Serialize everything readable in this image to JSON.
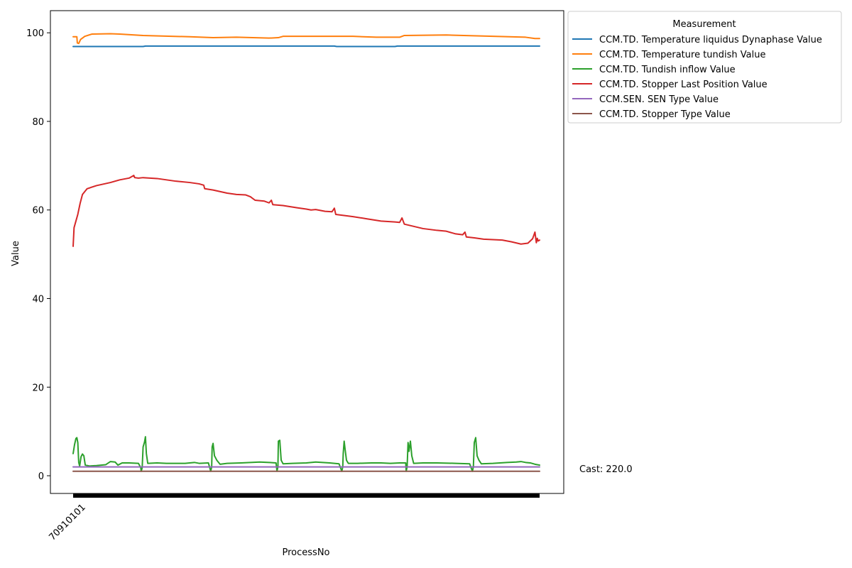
{
  "chart_data": {
    "type": "line",
    "xlabel": "ProcessNo",
    "ylabel": "Value",
    "x_tick_labels": [
      "70910101"
    ],
    "y_ticks": [
      0,
      20,
      40,
      60,
      80,
      100
    ],
    "ylim": [
      -4,
      105
    ],
    "xlim": [
      0,
      100
    ],
    "grid": false,
    "legend": {
      "title": "Measurement",
      "placement": "outside-top-right"
    },
    "annotation": "Cast: 220.0",
    "series": [
      {
        "name": "CCM.TD. Temperature liquidus Dynaphase Value",
        "color": "#1f77b4",
        "points": [
          [
            0,
            96.9
          ],
          [
            15,
            96.9
          ],
          [
            15.5,
            97.0
          ],
          [
            56,
            97.0
          ],
          [
            56.5,
            96.9
          ],
          [
            69,
            96.9
          ],
          [
            69.5,
            97.0
          ],
          [
            100,
            97.0
          ]
        ]
      },
      {
        "name": "CCM.TD. Temperature tundish Value",
        "color": "#ff7f0e",
        "points": [
          [
            0,
            99.1
          ],
          [
            0.8,
            99.1
          ],
          [
            0.9,
            97.7
          ],
          [
            1.2,
            97.6
          ],
          [
            1.6,
            98.5
          ],
          [
            2.5,
            99.2
          ],
          [
            4,
            99.7
          ],
          [
            8,
            99.8
          ],
          [
            10,
            99.7
          ],
          [
            15,
            99.4
          ],
          [
            25,
            99.1
          ],
          [
            30,
            98.9
          ],
          [
            35,
            99.0
          ],
          [
            42,
            98.8
          ],
          [
            44,
            98.9
          ],
          [
            45,
            99.2
          ],
          [
            55,
            99.2
          ],
          [
            60,
            99.2
          ],
          [
            65,
            99.0
          ],
          [
            70,
            99.0
          ],
          [
            71,
            99.4
          ],
          [
            80,
            99.5
          ],
          [
            90,
            99.2
          ],
          [
            97,
            99.0
          ],
          [
            99,
            98.7
          ],
          [
            100,
            98.7
          ]
        ]
      },
      {
        "name": "CCM.TD. Tundish inflow Value",
        "color": "#2ca02c",
        "points": [
          [
            0,
            5.0
          ],
          [
            0.3,
            7.0
          ],
          [
            0.6,
            8.4
          ],
          [
            0.8,
            8.6
          ],
          [
            1.0,
            7.5
          ],
          [
            1.2,
            3.0
          ],
          [
            1.4,
            2.2
          ],
          [
            1.7,
            4.3
          ],
          [
            2,
            4.9
          ],
          [
            2.3,
            4.5
          ],
          [
            2.6,
            2.4
          ],
          [
            3.5,
            2.2
          ],
          [
            5,
            2.3
          ],
          [
            7,
            2.5
          ],
          [
            8,
            3.2
          ],
          [
            9,
            3.1
          ],
          [
            9.6,
            2.4
          ],
          [
            10.5,
            2.9
          ],
          [
            12,
            2.9
          ],
          [
            14,
            2.8
          ],
          [
            14.5,
            1.8
          ],
          [
            14.6,
            1.0
          ],
          [
            14.8,
            1.8
          ],
          [
            15,
            6.5
          ],
          [
            15.3,
            7.6
          ],
          [
            15.5,
            8.8
          ],
          [
            15.7,
            5.0
          ],
          [
            16,
            2.8
          ],
          [
            18,
            2.9
          ],
          [
            20,
            2.8
          ],
          [
            24,
            2.8
          ],
          [
            26,
            3.0
          ],
          [
            27,
            2.8
          ],
          [
            29,
            2.9
          ],
          [
            29.5,
            1.0
          ],
          [
            29.7,
            2.0
          ],
          [
            29.8,
            6.5
          ],
          [
            30,
            7.3
          ],
          [
            30.3,
            4.5
          ],
          [
            30.8,
            3.5
          ],
          [
            31.5,
            2.6
          ],
          [
            33,
            2.8
          ],
          [
            36,
            2.9
          ],
          [
            40,
            3.1
          ],
          [
            42,
            3.0
          ],
          [
            43.5,
            2.9
          ],
          [
            43.7,
            1.0
          ],
          [
            43.9,
            2.0
          ],
          [
            44,
            7.8
          ],
          [
            44.3,
            8.0
          ],
          [
            44.6,
            3.5
          ],
          [
            45,
            2.7
          ],
          [
            47,
            2.8
          ],
          [
            50,
            2.9
          ],
          [
            52,
            3.1
          ],
          [
            55,
            2.9
          ],
          [
            57,
            2.7
          ],
          [
            57.6,
            1.0
          ],
          [
            57.8,
            2.0
          ],
          [
            57.9,
            5.0
          ],
          [
            58.1,
            7.8
          ],
          [
            58.3,
            6.0
          ],
          [
            58.6,
            3.5
          ],
          [
            59,
            2.8
          ],
          [
            61,
            2.8
          ],
          [
            64,
            2.9
          ],
          [
            66,
            2.9
          ],
          [
            68,
            2.8
          ],
          [
            70,
            2.9
          ],
          [
            71.3,
            2.9
          ],
          [
            71.4,
            1.0
          ],
          [
            71.6,
            2.0
          ],
          [
            71.8,
            7.5
          ],
          [
            72,
            5.5
          ],
          [
            72.3,
            7.8
          ],
          [
            72.6,
            4.5
          ],
          [
            73,
            2.8
          ],
          [
            75,
            2.9
          ],
          [
            78,
            2.9
          ],
          [
            82,
            2.8
          ],
          [
            85,
            2.7
          ],
          [
            85.6,
            1.0
          ],
          [
            85.8,
            2.0
          ],
          [
            86,
            7.5
          ],
          [
            86.3,
            8.6
          ],
          [
            86.6,
            4.5
          ],
          [
            87,
            3.5
          ],
          [
            87.5,
            2.7
          ],
          [
            90,
            2.8
          ],
          [
            93,
            3.0
          ],
          [
            95,
            3.1
          ],
          [
            96,
            3.2
          ],
          [
            97,
            3.0
          ],
          [
            98,
            2.9
          ],
          [
            99,
            2.6
          ],
          [
            100,
            2.4
          ]
        ]
      },
      {
        "name": "CCM.TD. Stopper Last Position Value",
        "color": "#d62728",
        "points": [
          [
            0,
            51.8
          ],
          [
            0.2,
            56.0
          ],
          [
            0.6,
            57.5
          ],
          [
            1,
            59.0
          ],
          [
            1.5,
            61.5
          ],
          [
            2,
            63.5
          ],
          [
            3,
            64.8
          ],
          [
            5,
            65.5
          ],
          [
            8,
            66.2
          ],
          [
            10,
            66.8
          ],
          [
            12,
            67.2
          ],
          [
            13,
            67.8
          ],
          [
            13.2,
            67.3
          ],
          [
            14,
            67.2
          ],
          [
            15,
            67.3
          ],
          [
            18,
            67.1
          ],
          [
            20,
            66.8
          ],
          [
            22,
            66.5
          ],
          [
            25,
            66.2
          ],
          [
            27,
            65.9
          ],
          [
            28,
            65.6
          ],
          [
            28.2,
            64.8
          ],
          [
            30,
            64.5
          ],
          [
            33,
            63.8
          ],
          [
            35,
            63.5
          ],
          [
            37,
            63.4
          ],
          [
            38,
            63.0
          ],
          [
            39,
            62.2
          ],
          [
            41,
            62.0
          ],
          [
            42,
            61.6
          ],
          [
            42.5,
            62.2
          ],
          [
            42.8,
            61.2
          ],
          [
            45,
            61.0
          ],
          [
            48,
            60.5
          ],
          [
            50,
            60.2
          ],
          [
            51,
            60.0
          ],
          [
            52,
            60.1
          ],
          [
            54,
            59.7
          ],
          [
            55.5,
            59.6
          ],
          [
            56,
            60.4
          ],
          [
            56.3,
            59.0
          ],
          [
            60,
            58.5
          ],
          [
            63,
            58.0
          ],
          [
            66,
            57.5
          ],
          [
            69,
            57.3
          ],
          [
            70,
            57.2
          ],
          [
            70.5,
            58.2
          ],
          [
            71,
            56.8
          ],
          [
            73,
            56.3
          ],
          [
            75,
            55.8
          ],
          [
            78,
            55.4
          ],
          [
            80,
            55.2
          ],
          [
            82,
            54.6
          ],
          [
            83.5,
            54.4
          ],
          [
            84,
            55.0
          ],
          [
            84.3,
            53.9
          ],
          [
            86,
            53.7
          ],
          [
            88,
            53.4
          ],
          [
            90,
            53.3
          ],
          [
            92,
            53.2
          ],
          [
            94,
            52.8
          ],
          [
            96,
            52.3
          ],
          [
            97.5,
            52.5
          ],
          [
            98.5,
            53.5
          ],
          [
            99,
            55.0
          ],
          [
            99.3,
            52.6
          ],
          [
            99.5,
            53.6
          ],
          [
            99.7,
            53.0
          ],
          [
            100,
            53.2
          ]
        ]
      },
      {
        "name": "CCM.SEN. SEN Type Value",
        "color": "#9467bd",
        "points": [
          [
            0,
            2.0
          ],
          [
            100,
            2.0
          ]
        ]
      },
      {
        "name": "CCM.TD. Stopper Type Value",
        "color": "#8c564b",
        "points": [
          [
            0,
            1.0
          ],
          [
            100,
            1.0
          ]
        ]
      }
    ]
  }
}
